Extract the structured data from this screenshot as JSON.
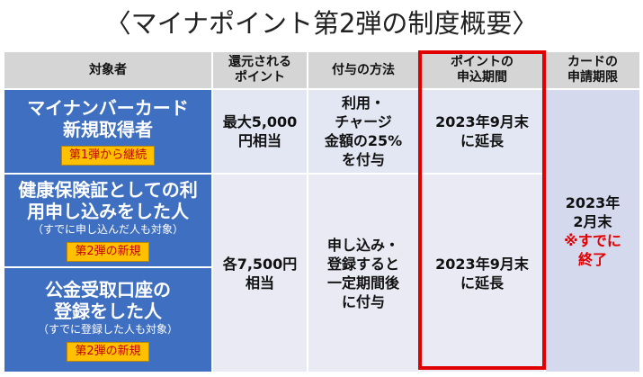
{
  "title": "〈マイナポイント第2弾の制度概要〉",
  "headers": {
    "target": "対象者",
    "points_l1": "還元される",
    "points_l2": "ポイント",
    "method": "付与の方法",
    "period_l1": "ポイントの",
    "period_l2": "申込期間",
    "card_l1": "カードの",
    "card_l2": "申請期限"
  },
  "rows": {
    "card": {
      "title_l1": "マイナンバーカード",
      "title_l2": "新規取得者",
      "tag": "第1弾から継続",
      "points_l1": "最大5,000",
      "points_l2": "円相当",
      "method_l1": "利用・",
      "method_l2": "チャージ",
      "method_l3": "金額の25%",
      "method_l4": "を付与",
      "period_l1": "2023年9月末",
      "period_l2": "に延長"
    },
    "insurance": {
      "title_l1": "健康保険証としての利",
      "title_l2": "用申し込みをした人",
      "note": "（すでに申し込んだ人も対象）",
      "tag": "第2弾の新規"
    },
    "bank": {
      "title_l1": "公金受取口座の",
      "title_l2": "登録をした人",
      "note": "（すでに登録した人も対象）",
      "tag": "第2弾の新規"
    },
    "shared": {
      "points_l1": "各7,500円",
      "points_l2": "相当",
      "method_l1": "申し込み・",
      "method_l2": "登録すると",
      "method_l3": "一定期間後",
      "method_l4": "に付与",
      "period_l1": "2023年9月末",
      "period_l2": "に延長"
    }
  },
  "card_deadline": {
    "l1": "2023年",
    "l2": "2月末",
    "l3": "※すでに",
    "l4": "終了"
  },
  "colors": {
    "header_bg": "#d5d5d5",
    "target_bg": "#3f6fc0",
    "tag_bg": "#ffc000",
    "tag_text": "#c00000",
    "highlight_border": "#e00000"
  }
}
